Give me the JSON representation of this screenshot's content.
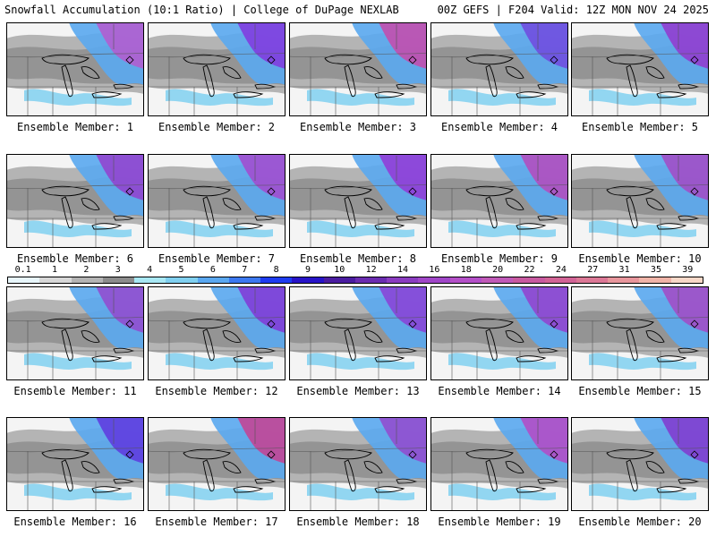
{
  "header": {
    "title": "Snowfall Accumulation (10:1 Ratio) | College of DuPage NEXLAB",
    "run_info": "00Z GEFS | F204 Valid: 12Z MON NOV 24 2025"
  },
  "colorbar": {
    "labels": [
      "0.1",
      "1",
      "2",
      "3",
      "4",
      "5",
      "6",
      "7",
      "8",
      "9",
      "10",
      "12",
      "14",
      "16",
      "18",
      "20",
      "22",
      "24",
      "27",
      "31",
      "35",
      "39"
    ],
    "colors": [
      "#e8f6fb",
      "#d8d8d8",
      "#b4b4b4",
      "#8c8c8c",
      "#a8e8f4",
      "#80d0f0",
      "#5aa8f0",
      "#3c78f0",
      "#1e3cf0",
      "#2814c8",
      "#4a1ca0",
      "#6a2cb0",
      "#8a3cc0",
      "#a046c8",
      "#b450c8",
      "#c05ab8",
      "#c85aa0",
      "#d26496",
      "#dc7896",
      "#e8969c",
      "#f0b4a8",
      "#f8d8c8"
    ]
  },
  "members": [
    {
      "label": "Ensemble Member: 1",
      "tint": "#b060d0"
    },
    {
      "label": "Ensemble Member: 2",
      "tint": "#8040e0"
    },
    {
      "label": "Ensemble Member: 3",
      "tint": "#c050b0"
    },
    {
      "label": "Ensemble Member: 4",
      "tint": "#7050e0"
    },
    {
      "label": "Ensemble Member: 5",
      "tint": "#9040d0"
    },
    {
      "label": "Ensemble Member: 6",
      "tint": "#9048d0"
    },
    {
      "label": "Ensemble Member: 7",
      "tint": "#a050d0"
    },
    {
      "label": "Ensemble Member: 8",
      "tint": "#9040d8"
    },
    {
      "label": "Ensemble Member: 9",
      "tint": "#b050c0"
    },
    {
      "label": "Ensemble Member: 10",
      "tint": "#a050c8"
    },
    {
      "label": "Ensemble Member: 11",
      "tint": "#9050d0"
    },
    {
      "label": "Ensemble Member: 12",
      "tint": "#8040d8"
    },
    {
      "label": "Ensemble Member: 13",
      "tint": "#8848d8"
    },
    {
      "label": "Ensemble Member: 14",
      "tint": "#9048d0"
    },
    {
      "label": "Ensemble Member: 15",
      "tint": "#a050c8"
    },
    {
      "label": "Ensemble Member: 16",
      "tint": "#6040e0"
    },
    {
      "label": "Ensemble Member: 17",
      "tint": "#c04898"
    },
    {
      "label": "Ensemble Member: 18",
      "tint": "#9050d0"
    },
    {
      "label": "Ensemble Member: 19",
      "tint": "#b050c8"
    },
    {
      "label": "Ensemble Member: 20",
      "tint": "#8040d0"
    }
  ]
}
